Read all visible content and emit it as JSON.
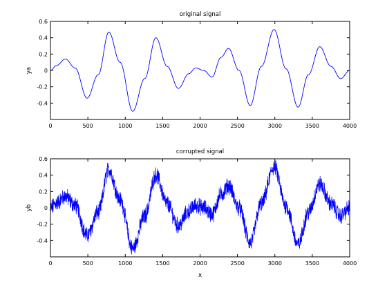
{
  "figure": {
    "background": "#ffffff",
    "line_color": "#0000ff"
  },
  "chart_data": [
    {
      "type": "line",
      "title": "original signal",
      "xlabel": "",
      "ylabel": "ya",
      "xlim": [
        0,
        4000
      ],
      "ylim": [
        -0.6,
        0.6
      ],
      "xticks": [
        0,
        500,
        1000,
        1500,
        2000,
        2500,
        3000,
        3500,
        4000
      ],
      "yticks": [
        -0.4,
        -0.2,
        0,
        0.2,
        0.4,
        0.6
      ],
      "xtick_labels": [
        "0",
        "500",
        "1000",
        "1500",
        "2000",
        "2500",
        "3000",
        "3500",
        "4000"
      ],
      "ytick_labels": [
        "-0.4",
        "-0.2",
        "0",
        "0.2",
        "0.4",
        "0.6"
      ],
      "grid": false,
      "noise": false,
      "series": [
        {
          "color": "#0000ff",
          "x": [
            0,
            80,
            200,
            330,
            490,
            640,
            780,
            930,
            1100,
            1260,
            1410,
            1560,
            1710,
            1850,
            1940,
            2050,
            2160,
            2280,
            2380,
            2520,
            2670,
            2820,
            2990,
            3150,
            3310,
            3450,
            3600,
            3750,
            3880,
            4000
          ],
          "y": [
            0.0,
            0.06,
            0.14,
            0.03,
            -0.34,
            -0.05,
            0.47,
            0.1,
            -0.5,
            -0.1,
            0.4,
            0.05,
            -0.22,
            -0.04,
            0.03,
            0.0,
            -0.08,
            0.16,
            0.27,
            0.0,
            -0.43,
            0.05,
            0.5,
            0.02,
            -0.45,
            -0.05,
            0.29,
            0.05,
            -0.1,
            0.0
          ]
        }
      ]
    },
    {
      "type": "line",
      "title": "corrupted signal",
      "xlabel": "x",
      "ylabel": "yb",
      "xlim": [
        0,
        4000
      ],
      "ylim": [
        -0.6,
        0.6
      ],
      "xticks": [
        0,
        500,
        1000,
        1500,
        2000,
        2500,
        3000,
        3500,
        4000
      ],
      "yticks": [
        -0.4,
        -0.2,
        0,
        0.2,
        0.4,
        0.6
      ],
      "xtick_labels": [
        "0",
        "500",
        "1000",
        "1500",
        "2000",
        "2500",
        "3000",
        "3500",
        "4000"
      ],
      "ytick_labels": [
        "-0.4",
        "-0.2",
        "0",
        "0.2",
        "0.4",
        "0.6"
      ],
      "grid": false,
      "noise": true,
      "series": [
        {
          "color": "#0000ff",
          "x": [
            0,
            80,
            200,
            330,
            490,
            640,
            780,
            930,
            1100,
            1260,
            1410,
            1560,
            1710,
            1850,
            1940,
            2050,
            2160,
            2280,
            2380,
            2520,
            2670,
            2820,
            2990,
            3150,
            3310,
            3450,
            3600,
            3750,
            3880,
            4000
          ],
          "y": [
            0.0,
            0.06,
            0.14,
            0.03,
            -0.34,
            -0.05,
            0.47,
            0.1,
            -0.5,
            -0.1,
            0.4,
            0.05,
            -0.22,
            -0.04,
            0.03,
            0.0,
            -0.08,
            0.16,
            0.27,
            0.0,
            -0.43,
            0.05,
            0.5,
            0.02,
            -0.45,
            -0.05,
            0.29,
            0.05,
            -0.1,
            0.0
          ]
        }
      ]
    }
  ]
}
